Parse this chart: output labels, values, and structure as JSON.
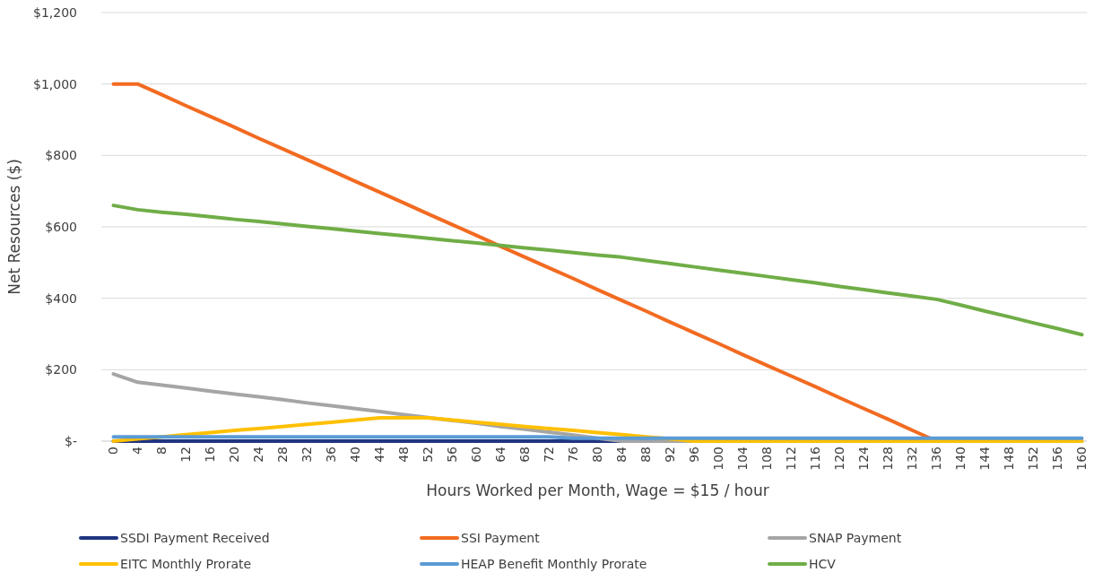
{
  "chart_data": {
    "type": "line",
    "xlabel": "Hours Worked per Month, Wage = $15 / hour",
    "ylabel": "Net Resources ($)",
    "categories": [
      "0",
      "4",
      "8",
      "12",
      "16",
      "20",
      "24",
      "28",
      "32",
      "36",
      "40",
      "44",
      "48",
      "52",
      "56",
      "60",
      "64",
      "68",
      "72",
      "76",
      "80",
      "84",
      "88",
      "92",
      "96",
      "100",
      "104",
      "108",
      "112",
      "116",
      "120",
      "124",
      "128",
      "132",
      "136",
      "140",
      "144",
      "148",
      "152",
      "156",
      "160"
    ],
    "ylim": [
      0,
      1200
    ],
    "yticks": [
      {
        "value": 0,
        "label": "$-"
      },
      {
        "value": 200,
        "label": "$200"
      },
      {
        "value": 400,
        "label": "$400"
      },
      {
        "value": 600,
        "label": "$600"
      },
      {
        "value": 800,
        "label": "$800"
      },
      {
        "value": 1000,
        "label": "$1,000"
      },
      {
        "value": 1200,
        "label": "$1,200"
      }
    ],
    "grid": "y",
    "legend": "bottom",
    "marker": "none",
    "line_style": "solid",
    "series": [
      {
        "name": "SSDI Payment Received",
        "color": "#203480",
        "values": [
          0,
          0,
          0,
          0,
          0,
          0,
          0,
          0,
          0,
          0,
          0,
          0,
          0,
          0,
          0,
          0,
          0,
          0,
          0,
          0,
          0,
          0,
          0,
          0,
          0,
          null,
          null,
          null,
          null,
          null,
          null,
          null,
          null,
          null,
          null,
          null,
          null,
          null,
          null,
          null,
          null
        ]
      },
      {
        "name": "SSI Payment",
        "color": "#f26b21",
        "values": [
          1000,
          1000,
          970,
          939,
          909,
          879,
          848,
          818,
          788,
          758,
          727,
          697,
          667,
          636,
          606,
          576,
          545,
          515,
          485,
          455,
          424,
          394,
          364,
          333,
          303,
          273,
          242,
          212,
          182,
          152,
          121,
          91,
          61,
          30,
          0,
          0,
          null,
          null,
          null,
          null,
          null
        ]
      },
      {
        "name": "SNAP Payment",
        "color": "#a5a5a5",
        "values": [
          188,
          165,
          157,
          149,
          140,
          132,
          124,
          116,
          107,
          99,
          91,
          83,
          74,
          66,
          58,
          50,
          41,
          33,
          25,
          17,
          8,
          0,
          0,
          0,
          0,
          0,
          0,
          0,
          0,
          0,
          0,
          0,
          0,
          0,
          0,
          0,
          0,
          0,
          0,
          0,
          0
        ]
      },
      {
        "name": "EITC Monthly Prorate",
        "color": "#ffc000",
        "values": [
          0,
          6,
          12,
          18,
          24,
          30,
          35,
          41,
          47,
          53,
          59,
          65,
          65,
          65,
          59,
          53,
          47,
          41,
          35,
          30,
          24,
          18,
          12,
          6,
          0,
          0,
          0,
          0,
          0,
          0,
          0,
          0,
          0,
          0,
          0,
          0,
          0,
          0,
          0,
          0,
          0
        ]
      },
      {
        "name": "HEAP Benefit Monthly Prorate",
        "color": "#5b9bd5",
        "values": [
          12,
          12,
          12,
          12,
          12,
          12,
          12,
          12,
          12,
          12,
          12,
          12,
          12,
          12,
          12,
          12,
          12,
          12,
          12,
          8,
          8,
          8,
          8,
          8,
          8,
          8,
          8,
          8,
          8,
          8,
          8,
          8,
          8,
          8,
          8,
          8,
          8,
          8,
          8,
          8,
          8
        ]
      },
      {
        "name": "HCV",
        "color": "#70ad47",
        "values": [
          660,
          648,
          641,
          635,
          628,
          621,
          615,
          608,
          601,
          595,
          588,
          581,
          575,
          568,
          561,
          555,
          548,
          541,
          535,
          528,
          521,
          515,
          506,
          497,
          488,
          479,
          470,
          461,
          452,
          443,
          433,
          424,
          415,
          406,
          397,
          381,
          364,
          348,
          331,
          315,
          298
        ]
      }
    ]
  }
}
